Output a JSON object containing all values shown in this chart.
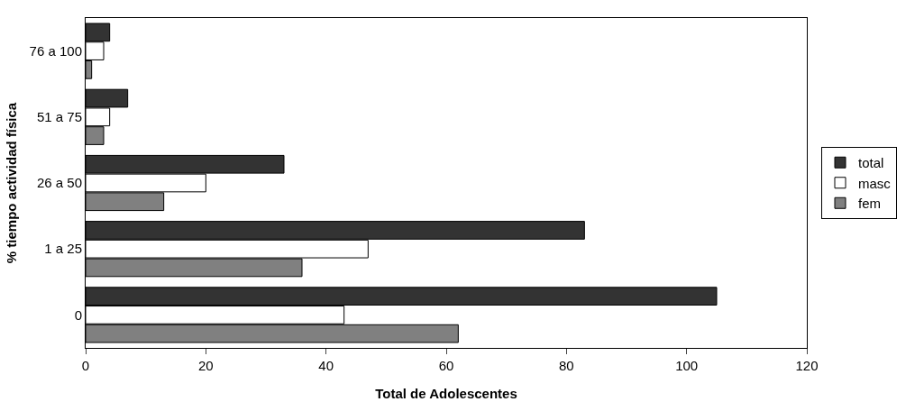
{
  "chart_data": {
    "type": "bar",
    "orientation": "horizontal",
    "xlabel": "Total de Adolescentes",
    "ylabel": "% tiempo actividad física",
    "categories": [
      "76 a 100",
      "51 a 75",
      "26 a 50",
      "1 a 25",
      "0"
    ],
    "series": [
      {
        "name": "total",
        "color": "#333333",
        "values": [
          4,
          7,
          33,
          83,
          105
        ]
      },
      {
        "name": "masc",
        "color": "#ffffff",
        "values": [
          3,
          4,
          20,
          47,
          43
        ]
      },
      {
        "name": "fem",
        "color": "#808080",
        "values": [
          1,
          3,
          13,
          36,
          62
        ]
      }
    ],
    "xlim": [
      0,
      120
    ],
    "xticks": [
      0,
      20,
      40,
      60,
      80,
      100,
      120
    ],
    "grid": false,
    "legend": "right"
  }
}
